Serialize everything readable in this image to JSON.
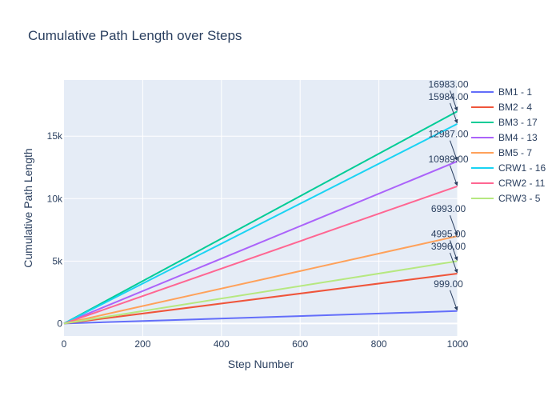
{
  "chart_data": {
    "type": "line",
    "title": "Cumulative Path Length over Steps",
    "xlabel": "Step Number",
    "ylabel": "Cumulative Path Length",
    "xlim": [
      0,
      1000
    ],
    "ylim": [
      -1000,
      19500
    ],
    "x_ticks": [
      0,
      200,
      400,
      600,
      800,
      1000
    ],
    "y_ticks": [
      0,
      5000,
      10000,
      15000
    ],
    "y_tick_labels": [
      "0",
      "5k",
      "10k",
      "15k"
    ],
    "grid": true,
    "legend_position": "right",
    "series": [
      {
        "name": "BM1 - 1",
        "color": "#636efa",
        "x": [
          0,
          999
        ],
        "y": [
          0,
          999.0
        ],
        "end_label": "999.00"
      },
      {
        "name": "BM2 - 4",
        "color": "#ef553b",
        "x": [
          0,
          999
        ],
        "y": [
          0,
          3996.0
        ],
        "end_label": "3996.00"
      },
      {
        "name": "BM3 - 17",
        "color": "#00cc96",
        "x": [
          0,
          999
        ],
        "y": [
          0,
          16983.0
        ],
        "end_label": "16983.00"
      },
      {
        "name": "BM4 - 13",
        "color": "#ab63fa",
        "x": [
          0,
          999
        ],
        "y": [
          0,
          12987.0
        ],
        "end_label": "12987.00"
      },
      {
        "name": "BM5 - 7",
        "color": "#ffa15a",
        "x": [
          0,
          999
        ],
        "y": [
          0,
          6993.0
        ],
        "end_label": "6993.00"
      },
      {
        "name": "CRW1 - 16",
        "color": "#19d3f3",
        "x": [
          0,
          999
        ],
        "y": [
          0,
          15984.0
        ],
        "end_label": "15984.00"
      },
      {
        "name": "CRW2 - 11",
        "color": "#ff6692",
        "x": [
          0,
          999
        ],
        "y": [
          0,
          10989.0
        ],
        "end_label": "10989.00"
      },
      {
        "name": "CRW3 - 5",
        "color": "#b6e880",
        "x": [
          0,
          999
        ],
        "y": [
          0,
          4995.0
        ],
        "end_label": "4995.00"
      }
    ]
  }
}
